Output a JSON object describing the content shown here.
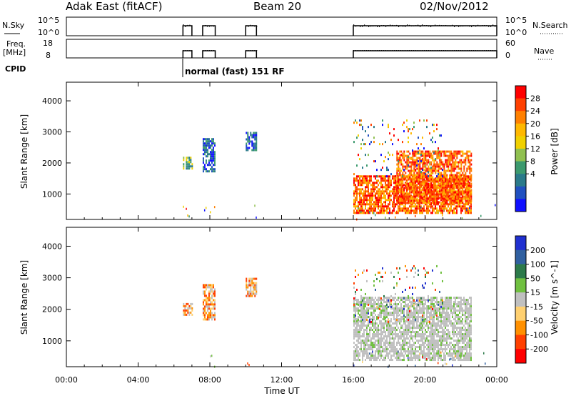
{
  "header": {
    "station": "Adak East (fitACF)",
    "beam": "Beam 20",
    "date": "02/Nov/2012"
  },
  "status_panels": {
    "nsky_label": "N.Sky",
    "nsky_ticks": [
      "10^5",
      "10^0"
    ],
    "nsearch_label": "N.Search",
    "nsearch_ticks": [
      "10^5",
      "10^0"
    ],
    "freq_label": "Freq.",
    "freq_unit": "[MHz]",
    "freq_ticks": [
      "18",
      "8"
    ],
    "nave_label": "Nave",
    "nave_ticks": [
      "60",
      "0"
    ],
    "cpid_label": "CPID",
    "cpid_text": "normal (fast) 151 RF"
  },
  "chart_data": [
    {
      "type": "heatmap",
      "parameter": "Power",
      "ylabel": "Slant Range [km]",
      "colorbar_label": "Power [dB]",
      "colorbar_ticks": [
        "28",
        "24",
        "20",
        "16",
        "12",
        "8",
        "4"
      ],
      "colorbar_colors": [
        "#ff0000",
        "#ff4000",
        "#ff8000",
        "#ffb800",
        "#f0d000",
        "#90c050",
        "#3c9a6e",
        "#2a7a8a",
        "#2050c0",
        "#1010ff"
      ],
      "y_ticks": [
        "4000",
        "3000",
        "2000",
        "1000"
      ],
      "ylim": [
        180,
        4600
      ],
      "x_ticks": [
        "00:00",
        "04:00",
        "08:00",
        "12:00",
        "16:00",
        "20:00",
        "00:00"
      ],
      "xlim_hours": [
        0,
        24
      ],
      "echo_regions": [
        {
          "t0": 6.5,
          "t1": 7.0,
          "r0": 1800,
          "r1": 2200,
          "level": "mid"
        },
        {
          "t0": 7.6,
          "t1": 8.3,
          "r0": 1700,
          "r1": 2800,
          "level": "low"
        },
        {
          "t0": 10.0,
          "t1": 10.6,
          "r0": 2400,
          "r1": 3000,
          "level": "low"
        },
        {
          "t0": 16.0,
          "t1": 22.6,
          "r0": 400,
          "r1": 1600,
          "level": "high"
        },
        {
          "t0": 18.4,
          "t1": 22.6,
          "r0": 700,
          "r1": 2400,
          "level": "high"
        },
        {
          "t0": 16.0,
          "t1": 21.0,
          "r0": 1600,
          "r1": 3400,
          "level": "scatter"
        }
      ]
    },
    {
      "type": "heatmap",
      "parameter": "Velocity",
      "ylabel": "Slant Range [km]",
      "colorbar_label": "Velocity [m s^-1]",
      "colorbar_ticks": [
        "200",
        "100",
        "50",
        "15",
        "-15",
        "-50",
        "-100",
        "-200"
      ],
      "colorbar_colors": [
        "#2030d0",
        "#3060a0",
        "#2c7a4a",
        "#70c040",
        "#c0c0c0",
        "#ffd070",
        "#ff9000",
        "#ff4000",
        "#ff0000"
      ],
      "y_ticks": [
        "4000",
        "3000",
        "2000",
        "1000"
      ],
      "ylim": [
        180,
        4600
      ],
      "x_ticks": [
        "00:00",
        "04:00",
        "08:00",
        "12:00",
        "16:00",
        "20:00",
        "00:00"
      ],
      "xlim_hours": [
        0,
        24
      ],
      "xlabel": "Time UT",
      "echo_regions": [
        {
          "t0": 6.5,
          "t1": 7.0,
          "r0": 1800,
          "r1": 2200,
          "level": "mixed"
        },
        {
          "t0": 7.6,
          "t1": 8.3,
          "r0": 1700,
          "r1": 2800,
          "level": "mixed"
        },
        {
          "t0": 10.0,
          "t1": 10.6,
          "r0": 2400,
          "r1": 3000,
          "level": "mixed"
        },
        {
          "t0": 16.0,
          "t1": 22.6,
          "r0": 400,
          "r1": 2400,
          "level": "grey"
        },
        {
          "t0": 16.0,
          "t1": 21.0,
          "r0": 1600,
          "r1": 3400,
          "level": "scatter"
        }
      ]
    }
  ]
}
